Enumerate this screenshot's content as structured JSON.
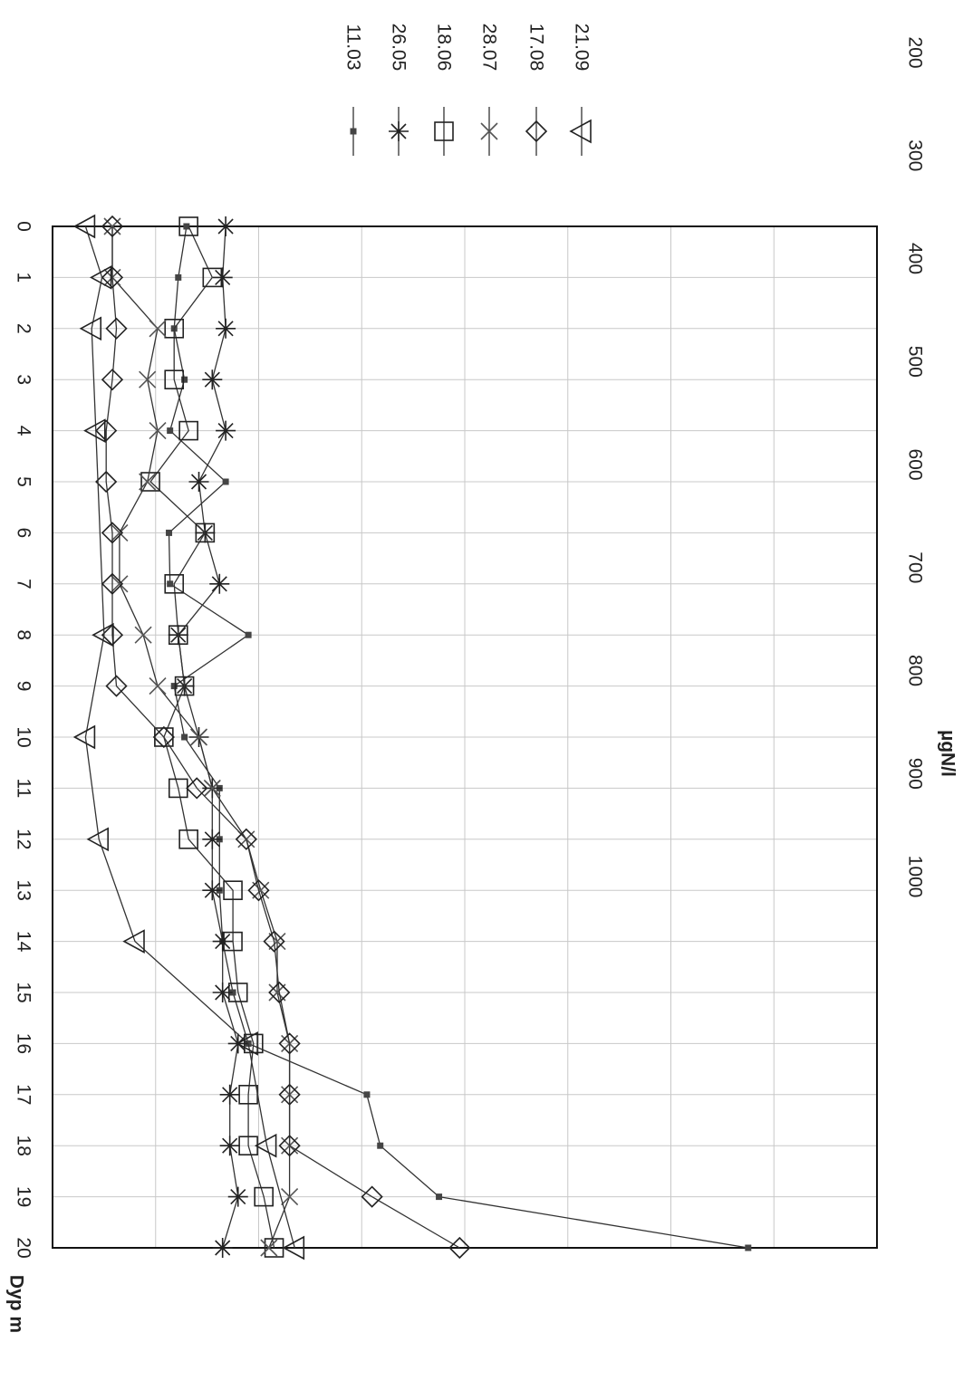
{
  "chart_data": {
    "type": "line",
    "orientation": "rotated-90",
    "x_axis": {
      "label": "Dyp m",
      "ticks": [
        0,
        1,
        2,
        3,
        4,
        5,
        6,
        7,
        8,
        9,
        10,
        11,
        12,
        13,
        14,
        15,
        16,
        17,
        18,
        19,
        20
      ],
      "range": [
        0,
        20
      ]
    },
    "y_axis": {
      "label": "µgN/l",
      "ticks": [
        200,
        300,
        400,
        500,
        600,
        700,
        800,
        900,
        1000
      ],
      "range": [
        200,
        1000
      ]
    },
    "grid": true,
    "legend_position": "top-right",
    "series": [
      {
        "name": "11.03",
        "marker": "small-square",
        "values": [
          330,
          322,
          318,
          328,
          314,
          368,
          313,
          314,
          390,
          318,
          328,
          362,
          362,
          362,
          365,
          375,
          390,
          505,
          518,
          575,
          875
        ]
      },
      {
        "name": "26.05",
        "marker": "asterisk",
        "values": [
          368,
          365,
          368,
          355,
          368,
          342,
          348,
          362,
          322,
          328,
          342,
          355,
          355,
          355,
          365,
          365,
          380,
          372,
          372,
          380,
          365
        ]
      },
      {
        "name": "18.06",
        "marker": "square",
        "values": [
          332,
          355,
          318,
          318,
          332,
          295,
          348,
          318,
          322,
          328,
          308,
          322,
          332,
          375,
          375,
          380,
          395,
          390,
          390,
          405,
          415
        ]
      },
      {
        "name": "28.07",
        "marker": "x",
        "values": [
          258,
          258,
          302,
          292,
          302,
          292,
          265,
          265,
          288,
          302,
          342,
          355,
          388,
          402,
          418,
          418,
          430,
          430,
          430,
          430,
          410
        ]
      },
      {
        "name": "17.08",
        "marker": "diamond",
        "values": [
          258,
          258,
          262,
          258,
          252,
          252,
          258,
          258,
          258,
          262,
          308,
          340,
          388,
          400,
          415,
          420,
          430,
          430,
          430,
          510,
          595
        ]
      },
      {
        "name": "21.09",
        "marker": "triangle",
        "values": [
          232,
          248,
          238,
          null,
          242,
          null,
          null,
          null,
          250,
          null,
          232,
          null,
          245,
          null,
          280,
          null,
          390,
          null,
          408,
          null,
          435
        ]
      }
    ]
  }
}
